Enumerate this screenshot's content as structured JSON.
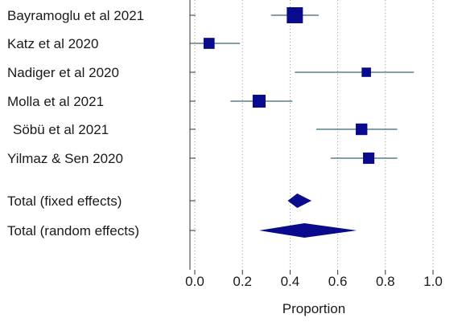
{
  "chart_data": {
    "type": "forest",
    "xlabel": "Proportion",
    "xlim": [
      0.0,
      1.0
    ],
    "xticks": [
      "0.0",
      "0.2",
      "0.4",
      "0.6",
      "0.8",
      "1.0"
    ],
    "xtick_values": [
      0.0,
      0.2,
      0.4,
      0.6,
      0.8,
      1.0
    ],
    "grid": "vertical dotted at ticks",
    "marker_color": "#0a0a8c",
    "ci_color": "#3a6478",
    "studies": [
      {
        "label": "Bayramoglu et al 2021",
        "estimate": 0.42,
        "ci": [
          0.32,
          0.52
        ],
        "weight": 1.0
      },
      {
        "label": "Katz et al 2020",
        "estimate": 0.06,
        "ci": [
          0.0,
          0.19
        ],
        "weight": 0.55
      },
      {
        "label": "Nadiger et al 2020",
        "estimate": 0.72,
        "ci": [
          0.42,
          0.92
        ],
        "weight": 0.4
      },
      {
        "label": "Molla et al 2021",
        "estimate": 0.27,
        "ci": [
          0.15,
          0.41
        ],
        "weight": 0.72
      },
      {
        "label": "Söbü et al 2021",
        "estimate": 0.7,
        "ci": [
          0.51,
          0.85
        ],
        "weight": 0.6
      },
      {
        "label": "Yilmaz & Sen 2020",
        "estimate": 0.73,
        "ci": [
          0.57,
          0.85
        ],
        "weight": 0.58
      }
    ],
    "pooled": [
      {
        "label": "Total (fixed effects)",
        "estimate": 0.43,
        "ci": [
          0.39,
          0.49
        ]
      },
      {
        "label": "Total (random effects)",
        "estimate": 0.46,
        "ci": [
          0.27,
          0.68
        ]
      }
    ]
  }
}
